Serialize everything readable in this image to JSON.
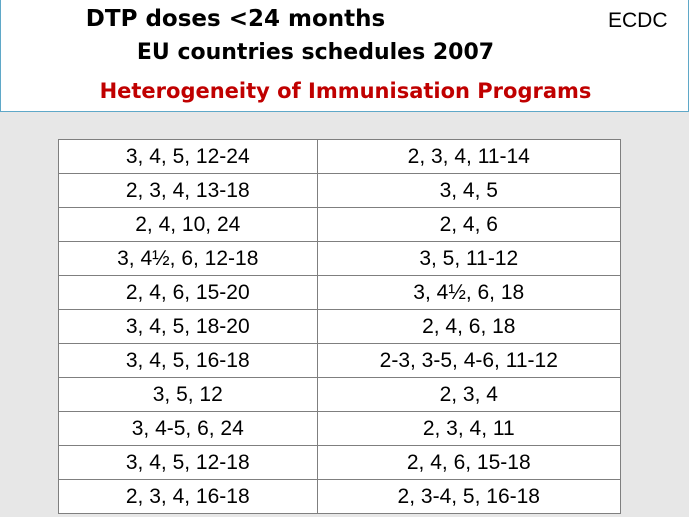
{
  "header": {
    "title_line1": "DTP doses <24 months",
    "title_line2": "EU countries schedules 2007",
    "title_line3": "Heterogeneity of Immunisation Programs",
    "brand": "ECDC"
  },
  "colors": {
    "title_accent": "#c00000",
    "header_border": "#5fa8c8",
    "content_background": "#e7e7e7"
  },
  "table": {
    "rows": [
      [
        "3, 4, 5, 12-24",
        "2, 3, 4, 11-14"
      ],
      [
        "2, 3, 4, 13-18",
        "3, 4, 5"
      ],
      [
        "2, 4, 10, 24",
        "2, 4, 6"
      ],
      [
        "3, 4½, 6, 12-18",
        "3, 5, 11-12"
      ],
      [
        "2, 4, 6, 15-20",
        "3, 4½, 6, 18"
      ],
      [
        "3, 4, 5, 18-20",
        "2, 4, 6, 18"
      ],
      [
        "3, 4, 5, 16-18",
        "2-3, 3-5, 4-6, 11-12"
      ],
      [
        "3, 5, 12",
        "2, 3, 4"
      ],
      [
        "3, 4-5, 6, 24",
        "2, 3, 4, 11"
      ],
      [
        "3, 4, 5, 12-18",
        "2, 4, 6, 15-18"
      ],
      [
        "2, 3, 4, 16-18",
        "2, 3-4, 5, 16-18"
      ]
    ]
  }
}
